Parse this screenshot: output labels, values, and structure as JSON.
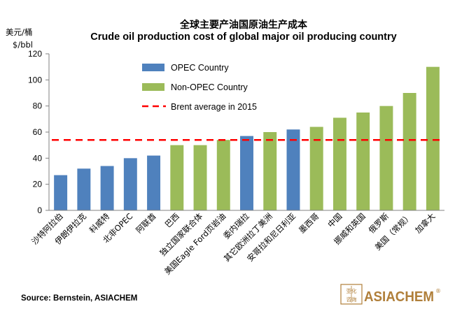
{
  "chart_data": {
    "type": "bar",
    "title_cn": "全球主要产油国原油生产成本",
    "title": "Crude oil production cost of global major oil producing country",
    "ylabel_cn": "美元/桶",
    "ylabel": "$/bbl",
    "ylim": [
      0,
      120
    ],
    "yticks": [
      0,
      20,
      40,
      60,
      80,
      100,
      120
    ],
    "grid": false,
    "legend_position": "top-left",
    "categories": [
      "沙特阿拉伯",
      "伊朗伊拉克",
      "科威特",
      "北非OPEC",
      "阿联酋",
      "巴西",
      "独立国家联合体",
      "美国Eagle Ford页岩油",
      "委内瑞拉",
      "其它欧洲拉丁美洲",
      "安哥拉和尼日利亚",
      "墨西哥",
      "中国",
      "挪威和英国",
      "俄罗斯",
      "美国（常规）",
      "加拿大"
    ],
    "groups": [
      "opec",
      "opec",
      "opec",
      "opec",
      "opec",
      "non",
      "non",
      "non",
      "opec",
      "non",
      "opec",
      "non",
      "non",
      "non",
      "non",
      "non",
      "non"
    ],
    "series": [
      {
        "name": "OPEC Country",
        "key": "opec",
        "color": "#4F81BD"
      },
      {
        "name": "Non-OPEC Country",
        "key": "non",
        "color": "#9BBB59"
      }
    ],
    "values": [
      27,
      32,
      34,
      40,
      42,
      50,
      50,
      54,
      57,
      60,
      62,
      64,
      71,
      75,
      80,
      90,
      110
    ],
    "reference_line": {
      "name": "Brent average in 2015",
      "value": 54,
      "color": "#FF0000"
    }
  },
  "footer": {
    "source": "Source: Bernstein, ASIACHEM",
    "brand": "ASIACHEM",
    "brand_mark": "®",
    "logo_chars": [
      "亚化",
      "咨询"
    ]
  }
}
